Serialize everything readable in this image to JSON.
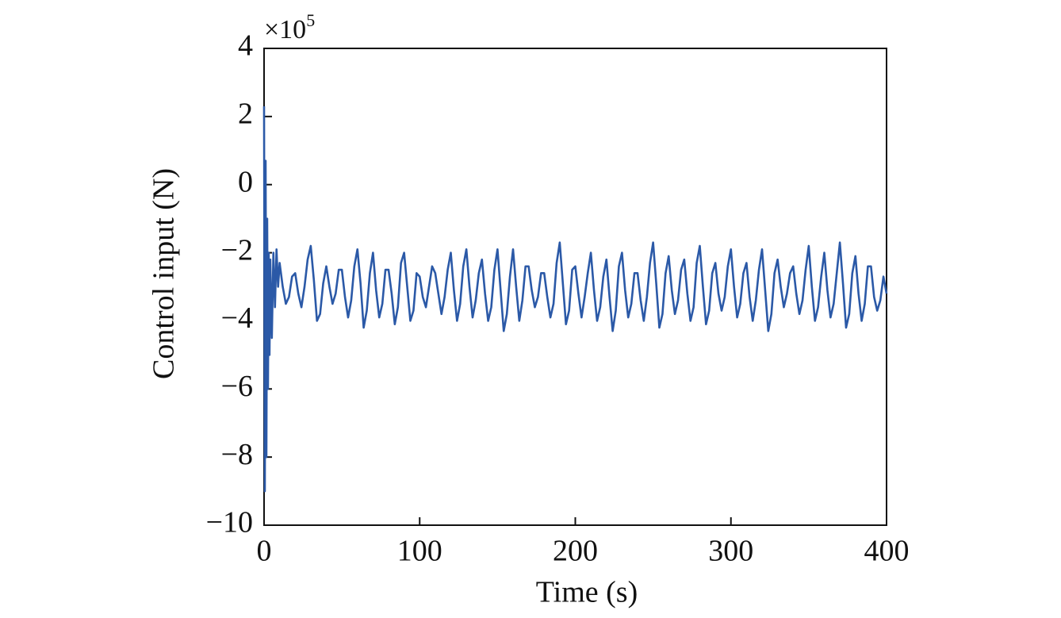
{
  "chart_data": {
    "type": "line",
    "x_label": "Time (s)",
    "y_label": "Control input (N)",
    "y_multiplier": {
      "base": "×10",
      "exponent": "5"
    },
    "color": "#2b59a7",
    "xlim": [
      0,
      400
    ],
    "xticks": [
      0,
      100,
      200,
      300,
      400
    ],
    "ylim": [
      -10,
      4
    ],
    "yticks": [
      {
        "value": -10,
        "label": "−10"
      },
      {
        "value": -8,
        "label": "−8"
      },
      {
        "value": -6,
        "label": "−6"
      },
      {
        "value": -4,
        "label": "−4"
      },
      {
        "value": -2,
        "label": "−2"
      },
      0,
      2,
      4
    ],
    "x": [
      0,
      0.5,
      1,
      1.5,
      2,
      2.5,
      3,
      3.5,
      4,
      5,
      6,
      7,
      8,
      9,
      10,
      12,
      14,
      16,
      18,
      20,
      22,
      24,
      26,
      28,
      30,
      32,
      34,
      36,
      38,
      40,
      42,
      44,
      46,
      48,
      50,
      52,
      54,
      56,
      58,
      60,
      62,
      64,
      66,
      68,
      70,
      72,
      74,
      76,
      78,
      80,
      82,
      84,
      86,
      88,
      90,
      92,
      94,
      96,
      98,
      100,
      102,
      104,
      106,
      108,
      110,
      112,
      114,
      116,
      118,
      120,
      122,
      124,
      126,
      128,
      130,
      132,
      134,
      136,
      138,
      140,
      142,
      144,
      146,
      148,
      150,
      152,
      154,
      156,
      158,
      160,
      162,
      164,
      166,
      168,
      170,
      172,
      174,
      176,
      178,
      180,
      182,
      184,
      186,
      188,
      190,
      192,
      194,
      196,
      198,
      200,
      202,
      204,
      206,
      208,
      210,
      212,
      214,
      216,
      218,
      220,
      222,
      224,
      226,
      228,
      230,
      232,
      234,
      236,
      238,
      240,
      242,
      244,
      246,
      248,
      250,
      252,
      254,
      256,
      258,
      260,
      262,
      264,
      266,
      268,
      270,
      272,
      274,
      276,
      278,
      280,
      282,
      284,
      286,
      288,
      290,
      292,
      294,
      296,
      298,
      300,
      302,
      304,
      306,
      308,
      310,
      312,
      314,
      316,
      318,
      320,
      322,
      324,
      326,
      328,
      330,
      332,
      334,
      336,
      338,
      340,
      342,
      344,
      346,
      348,
      350,
      352,
      354,
      356,
      358,
      360,
      362,
      364,
      366,
      368,
      370,
      372,
      374,
      376,
      378,
      380,
      382,
      384,
      386,
      388,
      390,
      392,
      394,
      396,
      398,
      400
    ],
    "values": [
      2.3,
      -9,
      0.7,
      -8,
      -1,
      -6,
      -2,
      -5,
      -2.2,
      -4.5,
      -2.0,
      -3.6,
      -1.9,
      -3.0,
      -2.3,
      -3.0,
      -3.5,
      -3.3,
      -2.7,
      -2.6,
      -3.2,
      -3.6,
      -3.0,
      -2.2,
      -1.8,
      -2.8,
      -4.0,
      -3.8,
      -2.9,
      -2.4,
      -3.0,
      -3.5,
      -3.2,
      -2.5,
      -2.5,
      -3.3,
      -3.9,
      -3.4,
      -2.4,
      -1.9,
      -2.9,
      -4.2,
      -3.7,
      -2.6,
      -2.0,
      -3.1,
      -3.9,
      -3.5,
      -2.5,
      -2.5,
      -3.2,
      -4.1,
      -3.6,
      -2.3,
      -2.0,
      -3.0,
      -4.0,
      -3.7,
      -2.6,
      -2.7,
      -3.3,
      -3.6,
      -3.0,
      -2.4,
      -2.6,
      -3.2,
      -3.8,
      -3.3,
      -2.5,
      -2.0,
      -3.1,
      -4.0,
      -3.5,
      -2.4,
      -1.9,
      -3.0,
      -3.9,
      -3.4,
      -2.6,
      -2.2,
      -3.2,
      -4.0,
      -3.6,
      -2.5,
      -1.9,
      -3.1,
      -4.3,
      -3.8,
      -2.7,
      -1.9,
      -3.0,
      -4.0,
      -3.4,
      -2.4,
      -2.4,
      -3.1,
      -3.6,
      -3.3,
      -2.6,
      -2.6,
      -3.3,
      -3.9,
      -3.5,
      -2.3,
      -1.7,
      -2.9,
      -4.1,
      -3.7,
      -2.5,
      -2.4,
      -3.2,
      -3.9,
      -3.3,
      -2.6,
      -2.0,
      -3.1,
      -4.0,
      -3.6,
      -2.7,
      -2.2,
      -3.3,
      -4.3,
      -3.7,
      -2.4,
      -2.0,
      -3.1,
      -3.9,
      -3.5,
      -2.6,
      -2.6,
      -3.4,
      -4.0,
      -3.3,
      -2.3,
      -1.7,
      -2.9,
      -4.2,
      -3.8,
      -2.6,
      -2.1,
      -3.1,
      -3.8,
      -3.4,
      -2.5,
      -2.2,
      -3.2,
      -4.0,
      -3.6,
      -2.3,
      -1.8,
      -3.0,
      -4.1,
      -3.7,
      -2.6,
      -2.3,
      -3.2,
      -3.7,
      -3.3,
      -2.4,
      -1.9,
      -3.0,
      -3.9,
      -3.5,
      -2.6,
      -2.3,
      -3.3,
      -4.0,
      -3.4,
      -2.5,
      -1.9,
      -3.1,
      -4.3,
      -3.8,
      -2.6,
      -2.2,
      -3.0,
      -3.6,
      -3.2,
      -2.6,
      -2.4,
      -3.2,
      -3.8,
      -3.4,
      -2.5,
      -1.8,
      -3.0,
      -4.0,
      -3.6,
      -2.7,
      -2.0,
      -3.1,
      -3.9,
      -3.5,
      -2.6,
      -1.7,
      -2.9,
      -4.2,
      -3.8,
      -2.6,
      -2.1,
      -3.2,
      -4.0,
      -3.5,
      -2.4,
      -2.4,
      -3.3,
      -3.7,
      -3.4,
      -2.7,
      -3.2
    ]
  }
}
